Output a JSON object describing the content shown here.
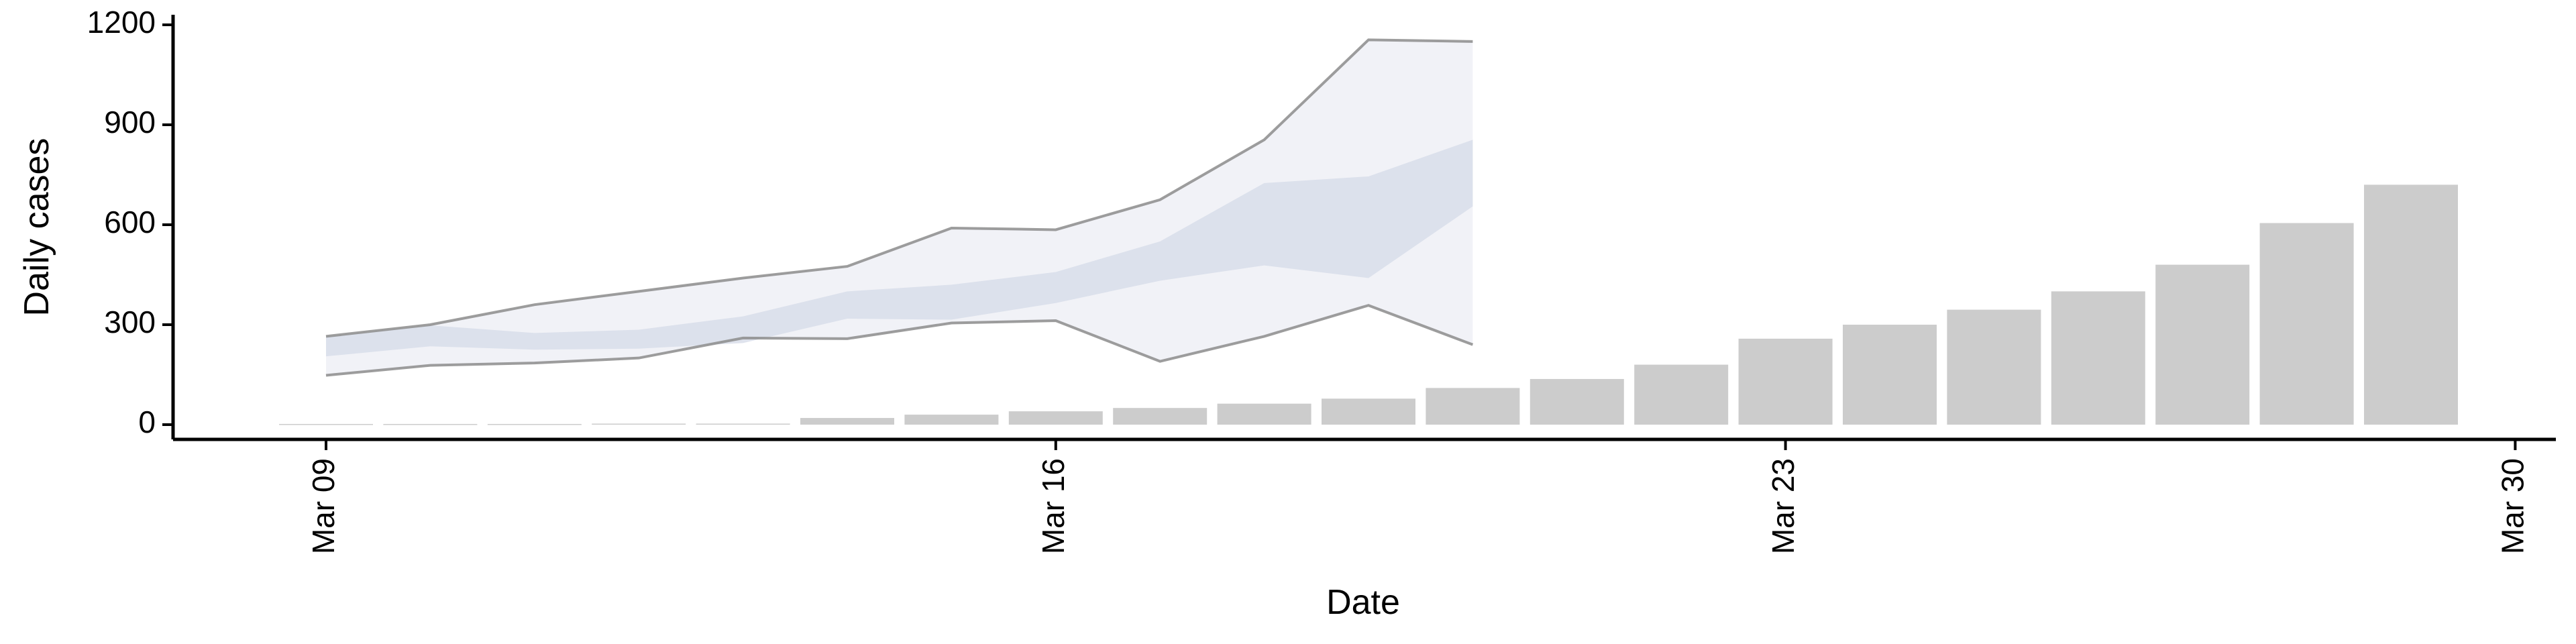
{
  "chart_data": {
    "type": "bar",
    "xlabel": "Date",
    "ylabel": "Daily cases",
    "x_ticks": [
      {
        "date": "2020-03-09",
        "label": "Mar 09"
      },
      {
        "date": "2020-03-16",
        "label": "Mar 16"
      },
      {
        "date": "2020-03-23",
        "label": "Mar 23"
      },
      {
        "date": "2020-03-30",
        "label": "Mar 30"
      }
    ],
    "xlim": [
      "2020-03-07",
      "2020-03-30"
    ],
    "y_ticks": [
      0,
      300,
      600,
      900,
      1200
    ],
    "ylim": [
      0,
      1200
    ],
    "grid": false,
    "bars": {
      "color": "#cccccc",
      "dates": [
        "2020-03-09",
        "2020-03-10",
        "2020-03-11",
        "2020-03-12",
        "2020-03-13",
        "2020-03-14",
        "2020-03-15",
        "2020-03-16",
        "2020-03-17",
        "2020-03-18",
        "2020-03-19",
        "2020-03-20",
        "2020-03-21",
        "2020-03-22",
        "2020-03-23",
        "2020-03-24",
        "2020-03-25",
        "2020-03-26",
        "2020-03-27",
        "2020-03-28",
        "2020-03-29"
      ],
      "values": [
        2,
        2,
        2,
        3,
        3,
        20,
        30,
        40,
        50,
        63,
        78,
        110,
        137,
        180,
        258,
        300,
        345,
        400,
        480,
        605,
        720
      ]
    },
    "outer_band": {
      "color": "#eef0f6",
      "line_color": "#8c8c8c",
      "dates": [
        "2020-03-09",
        "2020-03-10",
        "2020-03-11",
        "2020-03-12",
        "2020-03-13",
        "2020-03-14",
        "2020-03-15",
        "2020-03-16",
        "2020-03-17",
        "2020-03-18",
        "2020-03-19",
        "2020-03-20"
      ],
      "upper": [
        265,
        300,
        360,
        400,
        440,
        475,
        590,
        585,
        675,
        855,
        1155,
        1150
      ],
      "lower": [
        148,
        178,
        185,
        200,
        260,
        258,
        305,
        312,
        190,
        265,
        358,
        240
      ]
    },
    "inner_band": {
      "color": "#d7dce9",
      "dates": [
        "2020-03-09",
        "2020-03-10",
        "2020-03-11",
        "2020-03-12",
        "2020-03-13",
        "2020-03-14",
        "2020-03-15",
        "2020-03-16",
        "2020-03-17",
        "2020-03-18",
        "2020-03-19",
        "2020-03-20"
      ],
      "upper": [
        265,
        298,
        275,
        285,
        325,
        400,
        420,
        458,
        550,
        725,
        745,
        855
      ],
      "lower": [
        205,
        235,
        225,
        228,
        245,
        318,
        315,
        365,
        432,
        478,
        440,
        655
      ]
    }
  }
}
